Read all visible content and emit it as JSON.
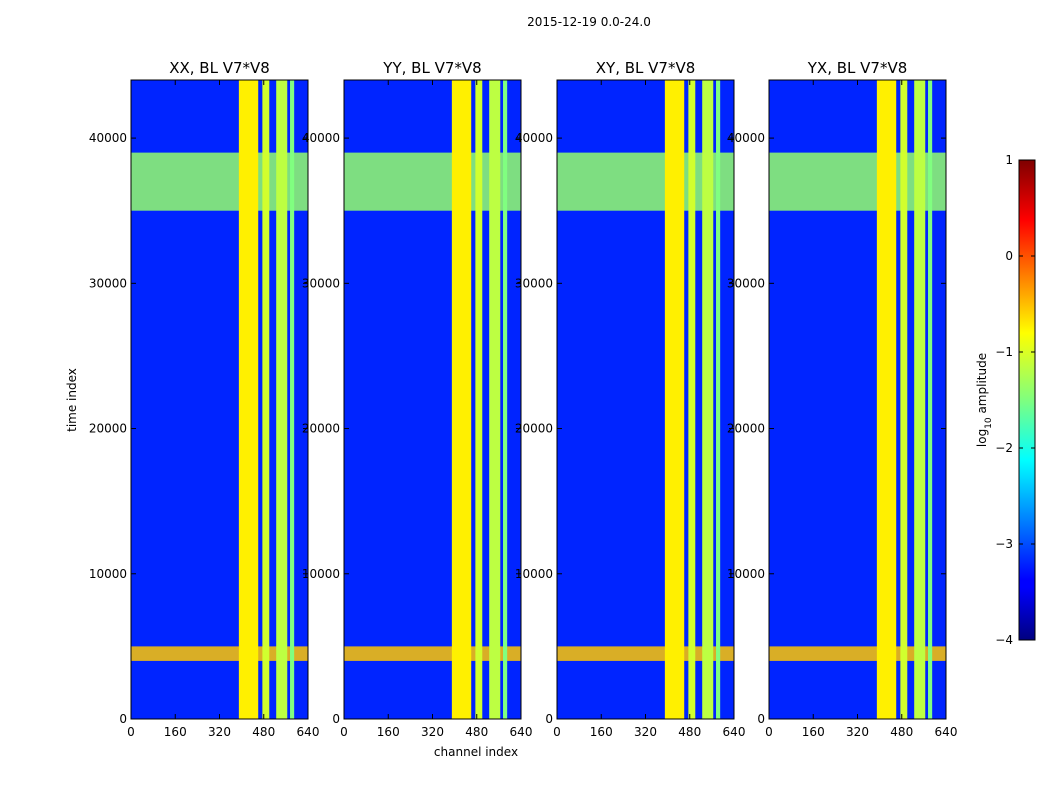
{
  "chart_data": {
    "type": "heatmap",
    "suptitle": "2015-12-19 0.0-24.0",
    "xlabel": "channel index",
    "ylabel": "time index",
    "xlim": [
      0,
      640
    ],
    "ylim": [
      0,
      44000
    ],
    "xticks": [
      0,
      160,
      320,
      480,
      640
    ],
    "yticks": [
      0,
      10000,
      20000,
      30000,
      40000
    ],
    "panels": [
      {
        "title": "XX, BL V7*V8",
        "polarization": "XX"
      },
      {
        "title": "YY, BL V7*V8",
        "polarization": "YY"
      },
      {
        "title": "XY, BL V7*V8",
        "polarization": "XY"
      },
      {
        "title": "YX, BL V7*V8",
        "polarization": "YX"
      }
    ],
    "colormap": "jet",
    "colorbar": {
      "label_prefix": "log",
      "label_sub": "10",
      "label_suffix": " amplitude",
      "range": [
        -4,
        1
      ],
      "ticks": [
        1,
        0,
        -1,
        -2,
        -3,
        -4
      ],
      "tick_labels": [
        "1",
        "0",
        "−1",
        "−2",
        "−3",
        "−4"
      ]
    },
    "bright_channel_bands": [
      {
        "start": 390,
        "end": 460,
        "level": -0.8
      },
      {
        "start": 475,
        "end": 500,
        "level": -1.1
      },
      {
        "start": 525,
        "end": 565,
        "level": -1.2
      },
      {
        "start": 575,
        "end": 590,
        "level": -1.5
      }
    ],
    "rfi_time_ranges": [
      {
        "start": 35000,
        "end": 39000,
        "level": -1.4
      },
      {
        "start": 4000,
        "end": 5000,
        "level": -0.6
      }
    ],
    "background_level": -3.2
  }
}
